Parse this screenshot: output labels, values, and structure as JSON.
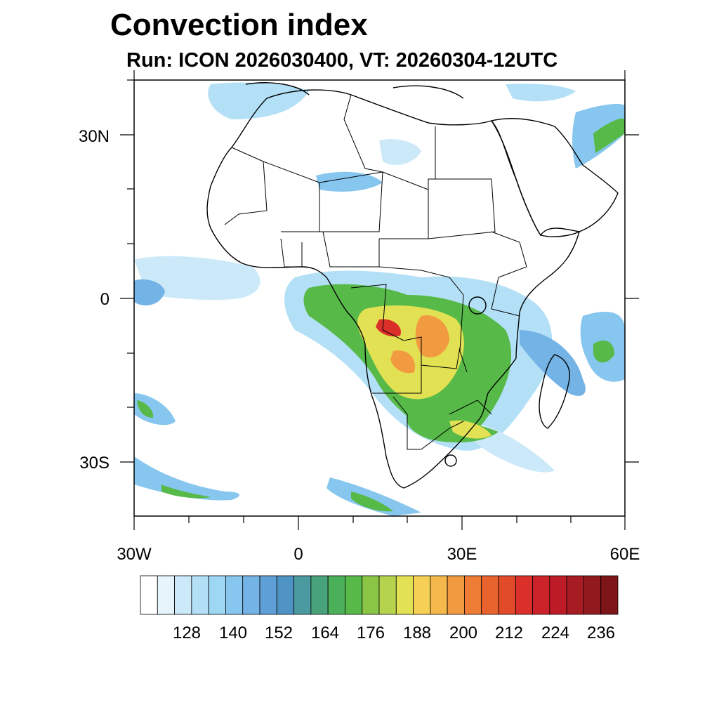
{
  "title": "Convection index",
  "subtitle": "Run: ICON 2026030400,  VT: 20260304-12UTC",
  "map": {
    "lat_labels": [
      "30N",
      "0",
      "30S"
    ],
    "lon_labels": [
      "30W",
      "0",
      "30E",
      "60E"
    ],
    "extent": {
      "lon": [
        -30,
        60
      ],
      "lat": [
        -40,
        40
      ]
    }
  },
  "colorbar": {
    "tick_labels": [
      "128",
      "140",
      "152",
      "164",
      "176",
      "188",
      "200",
      "212",
      "224",
      "236"
    ],
    "colors": [
      "#ffffff",
      "#e6f4fc",
      "#cbe9f8",
      "#b3e0f6",
      "#9dd7f4",
      "#87c6ee",
      "#74b3e6",
      "#5f9fd8",
      "#4f93c4",
      "#4a9aa0",
      "#48a37a",
      "#4ab05a",
      "#57b948",
      "#8bc546",
      "#b5d34d",
      "#e2e153",
      "#f6cf55",
      "#f4b84c",
      "#f29a3f",
      "#ee7c34",
      "#e8632d",
      "#e24b2a",
      "#da3029",
      "#cc2229",
      "#bd1c27",
      "#a71b22",
      "#921a1f",
      "#7e1519"
    ]
  },
  "icons": [
    "coastline",
    "country-borders",
    "convection-field"
  ]
}
